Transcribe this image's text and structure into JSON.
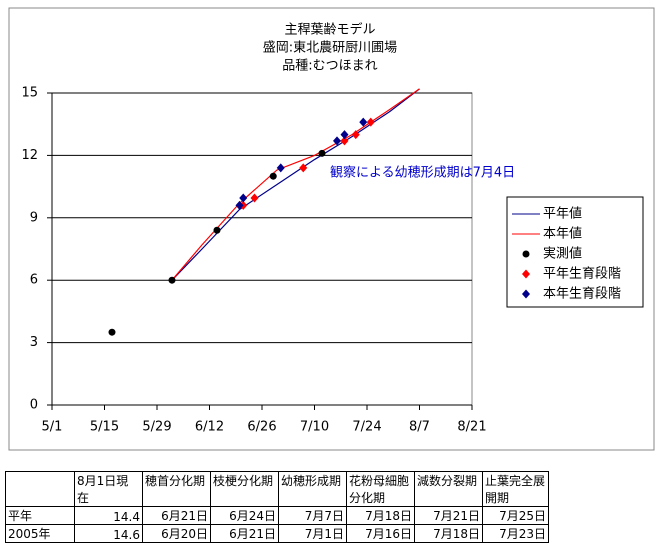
{
  "chart_data": {
    "type": "line",
    "title": [
      "主稈葉齢モデル",
      "盛岡:東北農研厨川圃場",
      "品種:むつほまれ"
    ],
    "xlim": [
      0,
      112
    ],
    "xticks": [
      {
        "value": 0,
        "label": "5/1"
      },
      {
        "value": 14,
        "label": "5/15"
      },
      {
        "value": 28,
        "label": "5/29"
      },
      {
        "value": 42,
        "label": "6/12"
      },
      {
        "value": 56,
        "label": "6/26"
      },
      {
        "value": 70,
        "label": "7/10"
      },
      {
        "value": 84,
        "label": "7/24"
      },
      {
        "value": 98,
        "label": "8/7"
      },
      {
        "value": 112,
        "label": "8/21"
      }
    ],
    "ylim": [
      0,
      15
    ],
    "yticks": [
      0,
      3,
      6,
      9,
      12,
      15
    ],
    "grid": true,
    "annotation": "観察による幼穂形成期は7月4日",
    "series": [
      {
        "name": "平年値",
        "color": "#00008b",
        "marker": "line",
        "x": [
          32,
          40,
          50,
          60,
          70,
          80,
          90,
          98
        ],
        "values": [
          6.0,
          7.5,
          9.4,
          10.6,
          11.8,
          12.9,
          14.1,
          15.2
        ]
      },
      {
        "name": "本年値",
        "color": "#ff0000",
        "marker": "line",
        "x": [
          32,
          40,
          50,
          60,
          70,
          80,
          90,
          98
        ],
        "values": [
          6.0,
          7.7,
          9.7,
          11.3,
          12.0,
          13.0,
          14.2,
          15.2
        ]
      },
      {
        "name": "実測値",
        "color": "#000000",
        "marker": "circle",
        "x": [
          16,
          32,
          44,
          59,
          72
        ],
        "values": [
          3.5,
          6.0,
          8.4,
          11.0,
          12.1
        ]
      },
      {
        "name": "平年生育段階",
        "color": "#ff0000",
        "marker": "diamond",
        "x": [
          51,
          54,
          67,
          78,
          81,
          85
        ],
        "values": [
          9.6,
          9.95,
          11.4,
          12.7,
          13.0,
          13.6
        ]
      },
      {
        "name": "本年生育段階",
        "color": "#00008b",
        "marker": "diamond",
        "x": [
          50,
          51,
          61,
          76,
          78,
          83
        ],
        "values": [
          9.6,
          9.95,
          11.4,
          12.7,
          13.0,
          13.6
        ]
      }
    ]
  },
  "table": {
    "header": [
      "",
      "8月1日現在",
      "穂首分化期",
      "枝梗分化期",
      "幼穂形成期",
      "花粉母細胞分化期",
      "減数分裂期",
      "止葉完全展開期"
    ],
    "rows": [
      [
        "平年",
        14.4,
        "6月21日",
        "6月24日",
        "7月7日",
        "7月18日",
        "7月21日",
        "7月25日"
      ],
      [
        "2005年",
        14.6,
        "6月20日",
        "6月21日",
        "7月1日",
        "7月16日",
        "7月18日",
        "7月23日"
      ]
    ]
  }
}
